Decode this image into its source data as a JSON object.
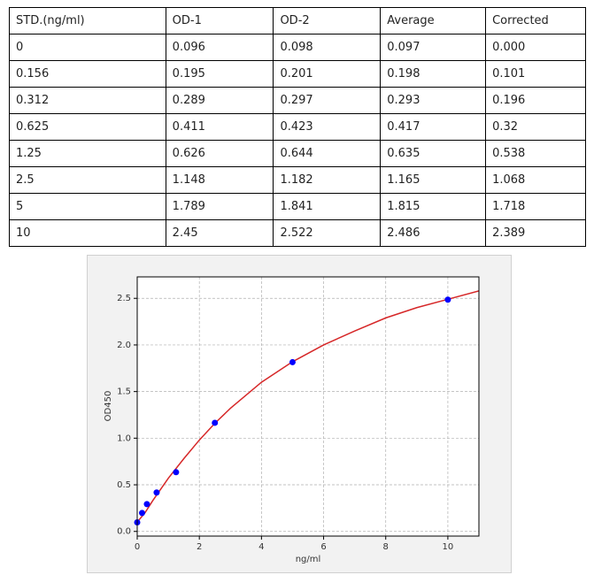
{
  "table": {
    "header": [
      "STD.(ng/ml)",
      "OD-1",
      "OD-2",
      "Average",
      "Corrected"
    ],
    "rows": [
      [
        "0",
        "0.096",
        "0.098",
        "0.097",
        "0.000"
      ],
      [
        "0.156",
        "0.195",
        "0.201",
        "0.198",
        "0.101"
      ],
      [
        "0.312",
        "0.289",
        "0.297",
        "0.293",
        "0.196"
      ],
      [
        "0.625",
        "0.411",
        "0.423",
        "0.417",
        "0.32"
      ],
      [
        "1.25",
        "0.626",
        "0.644",
        "0.635",
        "0.538"
      ],
      [
        "2.5",
        "1.148",
        "1.182",
        "1.165",
        "1.068"
      ],
      [
        "5",
        "1.789",
        "1.841",
        "1.815",
        "1.718"
      ],
      [
        "10",
        "2.45",
        "2.522",
        "2.486",
        "2.389"
      ]
    ]
  },
  "chart_data": {
    "type": "scatter",
    "xlabel": "ng/ml",
    "ylabel": "OD450",
    "xlim": [
      0,
      11
    ],
    "ylim": [
      -0.05,
      2.73
    ],
    "xticks": [
      0,
      2,
      4,
      6,
      8,
      10
    ],
    "yticks": [
      {
        "value": 0,
        "label": "0.0"
      },
      0.5,
      {
        "value": 1,
        "label": "1.0"
      },
      1.5,
      {
        "value": 2,
        "label": "2.0"
      },
      2.5
    ],
    "grid": true,
    "series": [
      {
        "type": "line",
        "color": "#d62728",
        "x": [
          0,
          0.25,
          0.5,
          1,
          1.5,
          2,
          2.5,
          3,
          4,
          5,
          6,
          7,
          8,
          9,
          10,
          11
        ],
        "values": [
          0.1,
          0.2,
          0.33,
          0.57,
          0.78,
          0.98,
          1.16,
          1.32,
          1.6,
          1.82,
          2.0,
          2.15,
          2.29,
          2.4,
          2.49,
          2.58
        ]
      },
      {
        "type": "scatter",
        "color": "#0000ff",
        "x": [
          0,
          0.156,
          0.312,
          0.625,
          1.25,
          2.5,
          5,
          10
        ],
        "values": [
          0.097,
          0.198,
          0.293,
          0.417,
          0.635,
          1.165,
          1.815,
          2.486
        ]
      }
    ]
  }
}
